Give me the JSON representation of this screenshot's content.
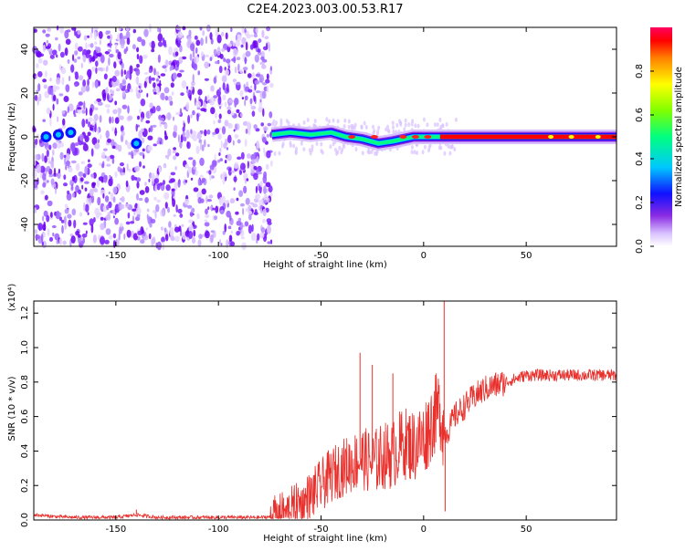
{
  "title": "C2E4.2023.003.00.53.R17",
  "chart_data": [
    {
      "type": "heatmap",
      "xlabel": "Height of straight line (km)",
      "ylabel": "Frequency (Hz)",
      "xlim": [
        -190,
        94
      ],
      "ylim": [
        -50,
        50
      ],
      "xticks": [
        -150,
        -100,
        -50,
        0,
        50
      ],
      "yticks": [
        -40,
        -20,
        0,
        20,
        40
      ],
      "noise_region": [
        -190,
        -74
      ],
      "signal_track": {
        "x": [
          -74,
          -65,
          -55,
          -45,
          -38,
          -30,
          -22,
          -15,
          -10,
          -5,
          0,
          5,
          8,
          20,
          40,
          60,
          80,
          94
        ],
        "freq": [
          1,
          2,
          1,
          2,
          0,
          -1,
          -3,
          -2,
          -1,
          0,
          0,
          0,
          0,
          0,
          0,
          0,
          0,
          0
        ]
      },
      "colorbar": {
        "label": "Normalized spectral amplitude",
        "range": [
          0,
          1
        ],
        "ticks": [
          "0.0",
          "0.2",
          "0.4",
          "0.6",
          "0.8"
        ]
      },
      "grid": false
    },
    {
      "type": "line",
      "xlabel": "Height of straight line (km)",
      "ylabel": "SNR (10 * v/v)",
      "ymultiplier": "(x10⁴)",
      "xlim": [
        -190,
        94
      ],
      "ylim": [
        0,
        1.27
      ],
      "xticks": [
        -150,
        -100,
        -50,
        0,
        50
      ],
      "yticks": [
        "0.0",
        "0.2",
        "0.4",
        "0.6",
        "0.8",
        "1.0",
        "1.2"
      ],
      "color": "#e8302c",
      "x": [
        -190,
        -180,
        -170,
        -160,
        -150,
        -140,
        -130,
        -120,
        -110,
        -100,
        -90,
        -80,
        -72,
        -65,
        -60,
        -55,
        -50,
        -45,
        -40,
        -35,
        -30,
        -25,
        -20,
        -15,
        -10,
        -5,
        0,
        5,
        8,
        10,
        12,
        15,
        20,
        25,
        30,
        35,
        40,
        50,
        60,
        70,
        80,
        94
      ],
      "y": [
        0.03,
        0.02,
        0.015,
        0.015,
        0.015,
        0.03,
        0.015,
        0.015,
        0.015,
        0.015,
        0.015,
        0.015,
        0.02,
        0.06,
        0.09,
        0.14,
        0.2,
        0.26,
        0.3,
        0.33,
        0.36,
        0.33,
        0.37,
        0.38,
        0.45,
        0.43,
        0.47,
        0.6,
        0.65,
        0.5,
        0.52,
        0.6,
        0.66,
        0.72,
        0.76,
        0.78,
        0.8,
        0.84,
        0.84,
        0.84,
        0.84,
        0.84
      ],
      "spikes": [
        {
          "x": -140,
          "y": 0.06
        },
        {
          "x": -31,
          "y": 0.97
        },
        {
          "x": -25,
          "y": 0.9
        },
        {
          "x": -15,
          "y": 0.85
        },
        {
          "x": 10,
          "y": 1.27
        },
        {
          "x": 10.5,
          "y": 0.05
        }
      ],
      "grid": false
    }
  ]
}
